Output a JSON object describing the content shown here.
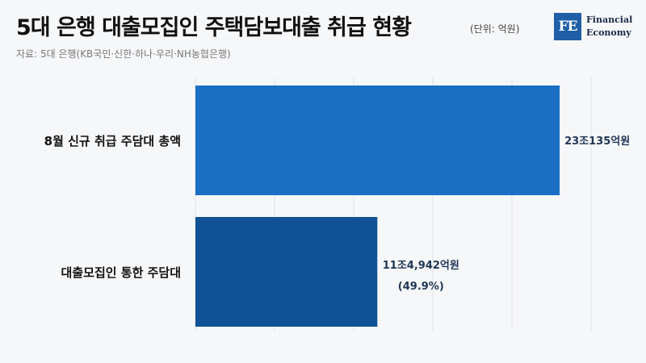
{
  "header": {
    "title": "5대 은행 대출모집인 주택담보대출 취급 현황",
    "unit": "(단위: 억원)",
    "source": "자료: 5대 은행(KB국민·신한·하나·우리·NH농협은행)"
  },
  "logo": {
    "mark": "FE",
    "line1": "Financial",
    "line2": "Economy"
  },
  "chart_data": {
    "type": "bar",
    "orientation": "horizontal",
    "categories": [
      "8월 신규 취급 주담대 총액",
      "대출모집인 통한 주담대"
    ],
    "values": [
      230135,
      114942
    ],
    "value_labels": [
      "23조135억원",
      "11조4,942억원"
    ],
    "annotations": [
      "",
      "(49.9%)"
    ],
    "colors": [
      "#1a6fc4",
      "#0f5296"
    ],
    "xlim": [
      0,
      250000
    ],
    "gridlines": [
      0,
      50000,
      100000,
      150000,
      200000,
      250000
    ],
    "grid": true,
    "legend": "none",
    "title": "",
    "xlabel": "",
    "ylabel": ""
  },
  "colors": {
    "background": "#f6f7f9",
    "grid": "#dde1e6",
    "label": "#1f3554"
  }
}
